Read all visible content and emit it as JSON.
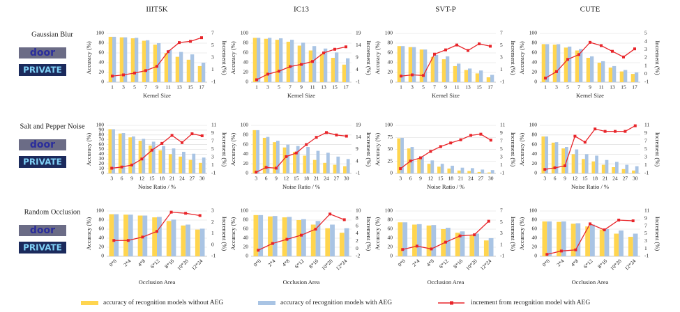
{
  "samples": [
    "door",
    "PRIVATE"
  ],
  "chart_data": [
    {
      "type": "bar",
      "title": "IIIT5K",
      "row_label": "Gaussian Blur",
      "xlabel": "Kernel Size",
      "ylabel": "Accuracy (%)",
      "y2label": "Increment (%)",
      "categories": [
        "1",
        "3",
        "5",
        "7",
        "9",
        "11",
        "13",
        "15",
        "17"
      ],
      "ylim": [
        0,
        100
      ],
      "yticks": [
        0,
        20,
        40,
        60,
        80,
        100
      ],
      "y2lim": [
        -1,
        7
      ],
      "y2ticks": [
        -1,
        1,
        3,
        5,
        7
      ],
      "grid": true,
      "series": [
        {
          "name": "accuracy of recognition models without AEG",
          "color": "#ffd54f",
          "values": [
            93,
            92,
            90,
            85,
            77,
            60,
            52,
            46,
            33
          ]
        },
        {
          "name": "accuracy of recognition models with AEG",
          "color": "#a9c4e4",
          "values": [
            93,
            92,
            91,
            86,
            80,
            66,
            62,
            57,
            40
          ]
        },
        {
          "name": "increment from recognition model with AEG",
          "color": "#e8252a",
          "type": "line",
          "axis": "y2",
          "values": [
            0,
            0.2,
            0.5,
            0.9,
            1.6,
            4.0,
            5.5,
            5.7,
            6.3
          ]
        }
      ]
    },
    {
      "type": "bar",
      "title": "IC13",
      "xlabel": "Kernel Size",
      "ylabel": "Accuracy (%)",
      "y2label": "Increment (%)",
      "categories": [
        "1",
        "3",
        "5",
        "7",
        "9",
        "11",
        "13",
        "15",
        "17"
      ],
      "ylim": [
        0,
        100
      ],
      "yticks": [
        0,
        20,
        40,
        60,
        80,
        100
      ],
      "y2lim": [
        -1,
        19
      ],
      "y2ticks": [
        -1,
        4,
        9,
        14,
        19
      ],
      "grid": true,
      "series": [
        {
          "color": "#ffd54f",
          "values": [
            91,
            89,
            87,
            83,
            75,
            65,
            58,
            50,
            36
          ]
        },
        {
          "color": "#a9c4e4",
          "values": [
            91,
            91,
            90,
            87,
            81,
            74,
            69,
            61,
            49
          ]
        },
        {
          "color": "#e8252a",
          "type": "line",
          "axis": "y2",
          "values": [
            0,
            2.3,
            3.5,
            5.4,
            6.3,
            7.5,
            11,
            12.5,
            13.5
          ]
        }
      ]
    },
    {
      "type": "bar",
      "title": "SVT-P",
      "xlabel": "Kernel Size",
      "ylabel": "Accuracy (%)",
      "y2label": "Increment (%)",
      "categories": [
        "1",
        "3",
        "5",
        "7",
        "9",
        "11",
        "13",
        "15",
        "17"
      ],
      "ylim": [
        0,
        100
      ],
      "yticks": [
        0,
        20,
        40,
        60,
        80,
        100
      ],
      "y2lim": [
        -1,
        7
      ],
      "y2ticks": [
        -1,
        1,
        3,
        5,
        7
      ],
      "grid": true,
      "series": [
        {
          "color": "#ffd54f",
          "values": [
            74,
            72,
            67,
            52,
            47,
            33,
            25,
            18,
            10
          ]
        },
        {
          "color": "#a9c4e4",
          "values": [
            74,
            72,
            67,
            56,
            53,
            38,
            28,
            24,
            15
          ]
        },
        {
          "color": "#e8252a",
          "type": "line",
          "axis": "y2",
          "values": [
            0,
            0.2,
            0.1,
            3.6,
            4.3,
            5.1,
            4.2,
            5.3,
            4.9
          ]
        }
      ]
    },
    {
      "type": "bar",
      "title": "CUTE",
      "xlabel": "Kernel Size",
      "ylabel": "Accuracy (%)",
      "y2label": "Increment (%)",
      "categories": [
        "1",
        "3",
        "5",
        "7",
        "9",
        "11",
        "13",
        "15",
        "17"
      ],
      "ylim": [
        0,
        100
      ],
      "yticks": [
        0,
        20,
        40,
        60,
        80,
        100
      ],
      "y2lim": [
        -1,
        5
      ],
      "y2ticks": [
        -1,
        0,
        1,
        2,
        3,
        4,
        5
      ],
      "grid": true,
      "series": [
        {
          "color": "#ffd54f",
          "values": [
            78,
            77,
            71,
            65,
            50,
            40,
            30,
            22,
            17
          ]
        },
        {
          "color": "#a9c4e4",
          "values": [
            78,
            78,
            73,
            68,
            53,
            43,
            33,
            25,
            20
          ]
        },
        {
          "color": "#e8252a",
          "type": "line",
          "axis": "y2",
          "values": [
            -0.5,
            0.3,
            1.8,
            2.4,
            3.9,
            3.5,
            2.8,
            2.1,
            3.1
          ]
        }
      ]
    },
    {
      "type": "bar",
      "row_label": "Salt and Pepper Noise",
      "xlabel": "Noise Ratio / %",
      "ylabel": "Accuracy (%)",
      "y2label": "Increment (%)",
      "categories": [
        "3",
        "6",
        "9",
        "12",
        "15",
        "18",
        "21",
        "24",
        "27",
        "30"
      ],
      "ylim": [
        0,
        100
      ],
      "yticks": [
        0,
        10,
        20,
        30,
        40,
        50,
        60,
        70,
        80,
        90,
        100
      ],
      "y2lim": [
        -1,
        11
      ],
      "y2ticks": [
        -1,
        1,
        3,
        5,
        7,
        9,
        11
      ],
      "grid": true,
      "series": [
        {
          "color": "#ffd54f",
          "values": [
            92,
            83,
            75,
            68,
            58,
            48,
            40,
            35,
            28,
            22
          ]
        },
        {
          "color": "#a9c4e4",
          "values": [
            92,
            84,
            77,
            72,
            66,
            57,
            52,
            45,
            41,
            33
          ]
        },
        {
          "color": "#e8252a",
          "type": "line",
          "axis": "y2",
          "values": [
            0.3,
            0.6,
            1.1,
            2.6,
            4.8,
            6.5,
            8.5,
            6.7,
            8.9,
            8.4
          ]
        }
      ]
    },
    {
      "type": "bar",
      "xlabel": "Noise Ratio / %",
      "ylabel": "Accuracy (%)",
      "y2label": "Increment (%)",
      "categories": [
        "3",
        "6",
        "9",
        "12",
        "15",
        "18",
        "21",
        "24",
        "27",
        "30"
      ],
      "ylim": [
        0,
        100
      ],
      "yticks": [
        0,
        20,
        40,
        60,
        80,
        100
      ],
      "y2lim": [
        -1,
        19
      ],
      "y2ticks": [
        -1,
        4,
        9,
        14,
        19
      ],
      "grid": true,
      "series": [
        {
          "color": "#ffd54f",
          "values": [
            90,
            74,
            65,
            54,
            45,
            37,
            28,
            22,
            18,
            15
          ]
        },
        {
          "color": "#a9c4e4",
          "values": [
            90,
            76,
            68,
            60,
            57,
            55,
            47,
            43,
            35,
            30
          ]
        },
        {
          "color": "#e8252a",
          "type": "line",
          "axis": "y2",
          "values": [
            -0.5,
            1.5,
            1.2,
            6,
            7.5,
            11,
            14,
            16,
            15,
            14.5
          ]
        }
      ]
    },
    {
      "type": "bar",
      "xlabel": "Noise Ratio / %",
      "ylabel": "Accuracy (%)",
      "y2label": "Increment (%)",
      "categories": [
        "3",
        "6",
        "9",
        "12",
        "15",
        "18",
        "21",
        "24",
        "27",
        "30"
      ],
      "ylim": [
        0,
        100
      ],
      "yticks": [
        0,
        25,
        50,
        75,
        100
      ],
      "y2lim": [
        -1,
        11
      ],
      "y2ticks": [
        -1,
        1,
        3,
        5,
        7,
        9,
        11
      ],
      "grid": true,
      "series": [
        {
          "color": "#ffd54f",
          "values": [
            73,
            52,
            30,
            20,
            14,
            10,
            6,
            5,
            3,
            2
          ]
        },
        {
          "color": "#a9c4e4",
          "values": [
            74,
            55,
            35,
            27,
            20,
            16,
            12,
            11,
            8,
            7
          ]
        },
        {
          "color": "#e8252a",
          "type": "line",
          "axis": "y2",
          "values": [
            0.2,
            2.1,
            2.9,
            4.5,
            5.7,
            6.6,
            7.4,
            8.5,
            8.8,
            7.3
          ]
        }
      ]
    },
    {
      "type": "bar",
      "xlabel": "Noise Ratio / %",
      "ylabel": "Accuracy (%)",
      "y2label": "Increment (%)",
      "categories": [
        "3",
        "6",
        "9",
        "12",
        "15",
        "18",
        "21",
        "24",
        "27",
        "30"
      ],
      "ylim": [
        0,
        100
      ],
      "yticks": [
        0,
        20,
        40,
        60,
        80,
        100
      ],
      "y2lim": [
        -1,
        11
      ],
      "y2ticks": [
        -1,
        1,
        3,
        5,
        7,
        9,
        11
      ],
      "grid": true,
      "series": [
        {
          "color": "#ffd54f",
          "values": [
            77,
            64,
            52,
            40,
            30,
            25,
            18,
            13,
            9,
            6
          ]
        },
        {
          "color": "#a9c4e4",
          "values": [
            77,
            65,
            55,
            50,
            40,
            37,
            28,
            24,
            18,
            15
          ]
        },
        {
          "color": "#e8252a",
          "type": "line",
          "axis": "y2",
          "values": [
            0,
            0.4,
            0.9,
            8.3,
            6.8,
            10.1,
            9.5,
            9.5,
            9.5,
            10.9
          ]
        }
      ]
    },
    {
      "type": "bar",
      "row_label": "Random Occlusion",
      "xlabel": "Occlusion Area",
      "ylabel": "Accuracy (%)",
      "y2label": "Increment (%)",
      "rotate_x": true,
      "categories": [
        "0*0",
        "2*4",
        "4*8",
        "6*12",
        "8*16",
        "10*20",
        "12*24"
      ],
      "ylim": [
        0,
        100
      ],
      "yticks": [
        0,
        20,
        40,
        60,
        80,
        100
      ],
      "y2lim": [
        -1,
        3
      ],
      "y2ticks": [
        -1,
        0,
        1,
        2,
        3
      ],
      "grid": true,
      "series": [
        {
          "color": "#ffd54f",
          "values": [
            93,
            92,
            90,
            86,
            78,
            68,
            59
          ]
        },
        {
          "color": "#a9c4e4",
          "values": [
            93,
            92,
            90,
            87,
            81,
            70,
            61
          ]
        },
        {
          "color": "#e8252a",
          "type": "line",
          "axis": "y2",
          "values": [
            0.4,
            0.4,
            0.7,
            1.2,
            2.9,
            2.8,
            2.6
          ]
        }
      ]
    },
    {
      "type": "bar",
      "xlabel": "Occlusion Area",
      "ylabel": "Accuracy (%)",
      "y2label": "Increment (%)",
      "rotate_x": true,
      "categories": [
        "0*0",
        "2*4",
        "4*8",
        "6*12",
        "8*16",
        "10*20",
        "12*24"
      ],
      "ylim": [
        0,
        100
      ],
      "yticks": [
        0,
        20,
        40,
        60,
        80,
        100
      ],
      "y2lim": [
        -2,
        10
      ],
      "y2ticks": [
        -2,
        0,
        2,
        4,
        6,
        8,
        10
      ],
      "grid": true,
      "series": [
        {
          "color": "#ffd54f",
          "values": [
            91,
            88,
            86,
            80,
            70,
            62,
            52
          ]
        },
        {
          "color": "#a9c4e4",
          "values": [
            91,
            89,
            87,
            82,
            78,
            70,
            62
          ]
        },
        {
          "color": "#e8252a",
          "type": "line",
          "axis": "y2",
          "values": [
            -0.4,
            1.4,
            2.5,
            3.6,
            5.2,
            9.2,
            7.7
          ]
        }
      ]
    },
    {
      "type": "bar",
      "xlabel": "Occlusion Area",
      "ylabel": "Accuracy (%)",
      "y2label": "Increment (%)",
      "rotate_x": true,
      "categories": [
        "0*0",
        "2*4",
        "4*8",
        "6*12",
        "8*16",
        "10*20",
        "12*24"
      ],
      "ylim": [
        0,
        100
      ],
      "yticks": [
        0,
        20,
        40,
        60,
        80,
        100
      ],
      "y2lim": [
        -1,
        7
      ],
      "y2ticks": [
        -1,
        1,
        3,
        5,
        7
      ],
      "grid": true,
      "series": [
        {
          "color": "#ffd54f",
          "values": [
            75,
            70,
            68,
            60,
            52,
            46,
            35
          ]
        },
        {
          "color": "#a9c4e4",
          "values": [
            75,
            71,
            69,
            63,
            55,
            50,
            40
          ]
        },
        {
          "color": "#e8252a",
          "type": "line",
          "axis": "y2",
          "values": [
            0.2,
            0.8,
            0.3,
            1.5,
            2.6,
            2.8,
            5.2
          ]
        }
      ]
    },
    {
      "type": "bar",
      "xlabel": "Occlusion Area",
      "ylabel": "Accuracy (%)",
      "y2label": "Increment (%)",
      "rotate_x": true,
      "categories": [
        "0*0",
        "2*4",
        "4*8",
        "6*12",
        "8*16",
        "10*20",
        "12*24"
      ],
      "ylim": [
        0,
        100
      ],
      "yticks": [
        0,
        20,
        40,
        60,
        80,
        100
      ],
      "y2lim": [
        -1,
        11
      ],
      "y2ticks": [
        -1,
        1,
        3,
        5,
        7,
        9,
        11
      ],
      "grid": true,
      "series": [
        {
          "color": "#ffd54f",
          "values": [
            77,
            76,
            72,
            66,
            59,
            50,
            43
          ]
        },
        {
          "color": "#a9c4e4",
          "values": [
            77,
            77,
            73,
            70,
            60,
            57,
            50
          ]
        },
        {
          "color": "#e8252a",
          "type": "line",
          "axis": "y2",
          "values": [
            -0.5,
            0.4,
            0.7,
            7.6,
            6.0,
            8.6,
            8.4
          ]
        }
      ]
    }
  ]
}
